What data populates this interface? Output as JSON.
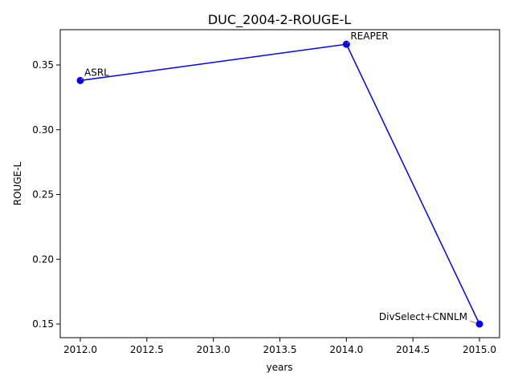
{
  "chart_data": {
    "type": "line",
    "title": "DUC_2004-2-ROUGE-L",
    "xlabel": "years",
    "ylabel": "ROUGE-L",
    "xlim": [
      1987.83,
      2015.16
    ],
    "ylim": [
      0.139,
      0.377
    ],
    "xticks": [
      2012.0,
      2012.5,
      2013.0,
      2013.5,
      2014.0,
      2014.5,
      2015.0
    ],
    "xtick_labels": [
      "2012.0",
      "2012.5",
      "2013.0",
      "2013.5",
      "2014.0",
      "2014.5",
      "2015.0"
    ],
    "yticks": [
      0.15,
      0.2,
      0.25,
      0.3,
      0.35
    ],
    "ytick_labels": [
      "0.15",
      "0.20",
      "0.25",
      "0.30",
      "0.35"
    ],
    "grid": false,
    "series": [
      {
        "color": "#0000ff",
        "points": [
          {
            "x": 2012.0,
            "y": 0.338,
            "label": "ASRL"
          },
          {
            "x": 2014.0,
            "y": 0.366,
            "label": "REAPER"
          },
          {
            "x": 2015.0,
            "y": 0.15,
            "label": "DivSelect+CNNLM"
          }
        ]
      }
    ],
    "annotation_arrow_color": "#e06666"
  }
}
